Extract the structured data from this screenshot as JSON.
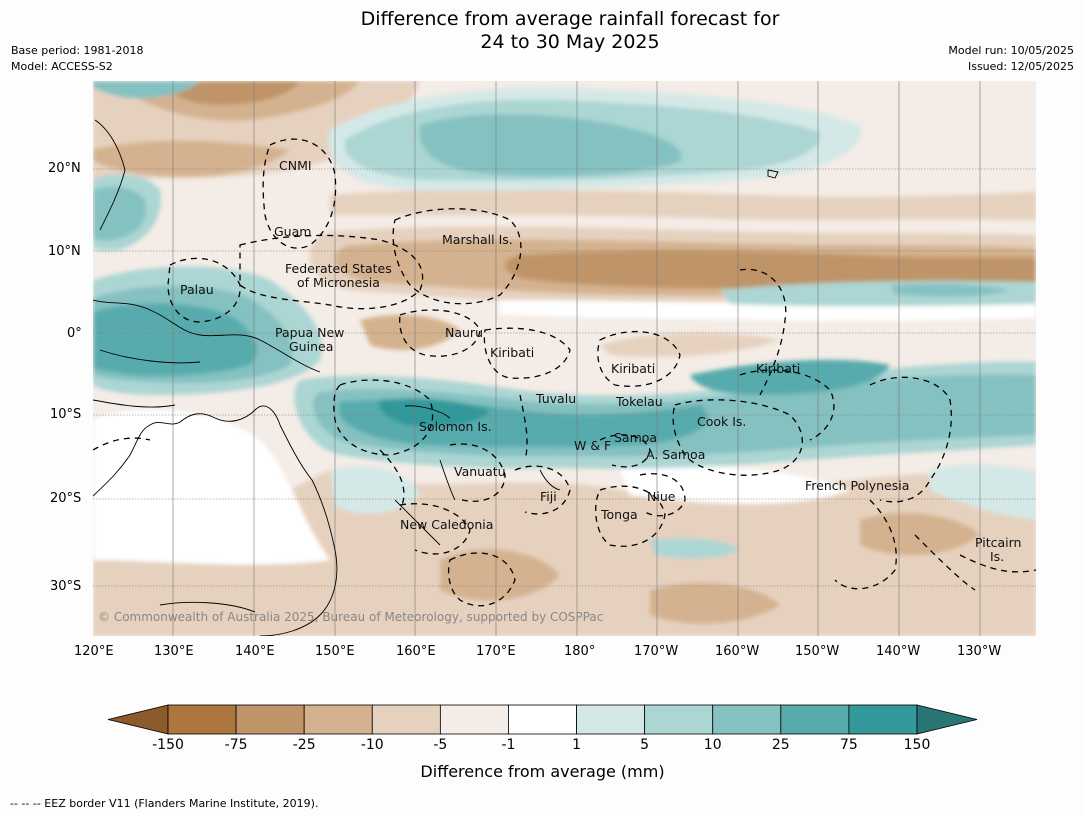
{
  "title": {
    "line1": "Difference from average rainfall forecast for",
    "line2": "24 to 30 May 2025"
  },
  "meta": {
    "base_period": "Base period: 1981-2018",
    "model": "Model: ACCESS-S2",
    "model_run": "Model run: 10/05/2025",
    "issued": "Issued: 12/05/2025"
  },
  "map": {
    "lat_labels": [
      "20°N",
      "10°N",
      "0°",
      "10°S",
      "20°S",
      "30°S"
    ],
    "lon_labels": [
      "120°E",
      "130°E",
      "140°E",
      "150°E",
      "160°E",
      "170°E",
      "180°",
      "170°W",
      "160°W",
      "150°W",
      "140°W",
      "130°W"
    ],
    "regions": {
      "cnmi": "CNMI",
      "guam": "Guam",
      "marshall": "Marshall Is.",
      "fsm_1": "Federated States",
      "fsm_2": "of Micronesia",
      "palau": "Palau",
      "png_1": "Papua New",
      "png_2": "Guinea",
      "nauru": "Nauru",
      "kiribati_west": "Kiribati",
      "kiribati_central": "Kiribati",
      "kiribati_east": "Kiribati",
      "tuvalu": "Tuvalu",
      "tokelau": "Tokelau",
      "cook": "Cook Is.",
      "solomon": "Solomon Is.",
      "samoa": "Samoa",
      "wf": "W & F",
      "asamoa": "A. Samoa",
      "vanuatu": "Vanuatu",
      "fiji": "Fiji",
      "niue": "Niue",
      "french_polynesia": "French Polynesia",
      "tonga": "Tonga",
      "new_caledonia": "New Caledonia",
      "pitcairn_1": "Pitcairn",
      "pitcairn_2": "Is."
    },
    "copyright": "© Commonwealth of Australia 2025, Bureau of Meteorology, supported by COSPPac"
  },
  "colorbar": {
    "title": "Difference from average (mm)",
    "ticks": [
      "-150",
      "-75",
      "-25",
      "-10",
      "-5",
      "-1",
      "1",
      "5",
      "10",
      "25",
      "75",
      "150"
    ],
    "colors": [
      "#8c5a2b",
      "#ad763e",
      "#bf9468",
      "#d4b28f",
      "#e6d1bf",
      "#f4ece6",
      "#ffffff",
      "#d4e9e7",
      "#acd6d4",
      "#85c1c1",
      "#58abad",
      "#33999a",
      "#2a7676"
    ]
  },
  "footnote": "--  --  -- EEZ border V11 (Flanders Marine Institute, 2019)."
}
